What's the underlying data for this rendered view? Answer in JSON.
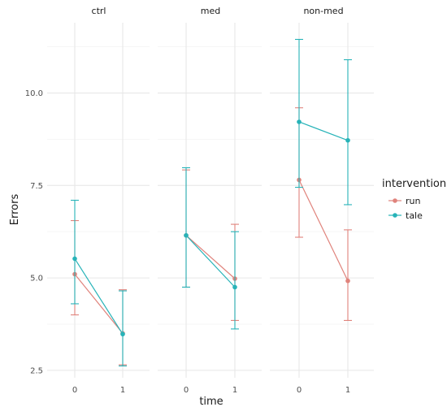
{
  "chart_data": {
    "type": "line",
    "facets": [
      "ctrl",
      "med",
      "non-med"
    ],
    "x_ticks": [
      "0",
      "1"
    ],
    "xlabel": "time",
    "ylabel": "Errors",
    "ylim": [
      2.3,
      11.9
    ],
    "y_ticks": [
      "2.5",
      "5.0",
      "7.5",
      "10.0"
    ],
    "y_tick_values": [
      2.5,
      5.0,
      7.5,
      10.0
    ],
    "grid": true,
    "legend": {
      "title": "intervention",
      "position": "right"
    },
    "series": [
      {
        "name": "run",
        "color": "#e0837c",
        "panels": [
          {
            "points": [
              {
                "x": 0,
                "y": 5.1,
                "low": 4.0,
                "high": 6.55
              },
              {
                "x": 1,
                "y": 3.5,
                "low": 2.65,
                "high": 4.68
              }
            ]
          },
          {
            "points": [
              {
                "x": 0,
                "y": 6.15,
                "low": 4.75,
                "high": 7.92
              },
              {
                "x": 1,
                "y": 4.98,
                "low": 3.85,
                "high": 6.45
              }
            ]
          },
          {
            "points": [
              {
                "x": 0,
                "y": 7.65,
                "low": 6.1,
                "high": 9.6
              },
              {
                "x": 1,
                "y": 4.92,
                "low": 3.85,
                "high": 6.3
              }
            ]
          }
        ]
      },
      {
        "name": "tale",
        "color": "#27b3b8",
        "panels": [
          {
            "points": [
              {
                "x": 0,
                "y": 5.52,
                "low": 4.3,
                "high": 7.1
              },
              {
                "x": 1,
                "y": 3.48,
                "low": 2.62,
                "high": 4.65
              }
            ]
          },
          {
            "points": [
              {
                "x": 0,
                "y": 6.15,
                "low": 4.75,
                "high": 7.98
              },
              {
                "x": 1,
                "y": 4.75,
                "low": 3.62,
                "high": 6.25
              }
            ]
          },
          {
            "points": [
              {
                "x": 0,
                "y": 9.22,
                "low": 7.45,
                "high": 11.45
              },
              {
                "x": 1,
                "y": 8.72,
                "low": 6.98,
                "high": 10.9
              }
            ]
          }
        ]
      }
    ]
  }
}
